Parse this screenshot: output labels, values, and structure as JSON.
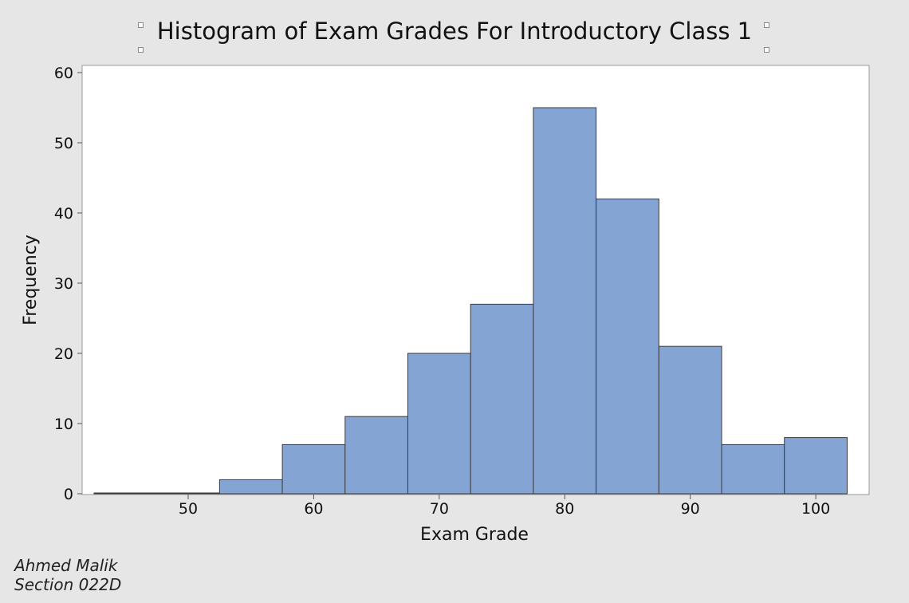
{
  "chart_data": {
    "type": "bar",
    "title": "Histogram of Exam Grades For Introductory Class 1",
    "xlabel": "Exam Grade",
    "ylabel": "Frequency",
    "bin_width": 5,
    "bins": [
      {
        "center": 45,
        "value": 0
      },
      {
        "center": 50,
        "value": 0
      },
      {
        "center": 55,
        "value": 2
      },
      {
        "center": 60,
        "value": 7
      },
      {
        "center": 65,
        "value": 11
      },
      {
        "center": 70,
        "value": 20
      },
      {
        "center": 75,
        "value": 27
      },
      {
        "center": 80,
        "value": 55
      },
      {
        "center": 85,
        "value": 42
      },
      {
        "center": 90,
        "value": 21
      },
      {
        "center": 95,
        "value": 7
      },
      {
        "center": 100,
        "value": 8
      }
    ],
    "x_ticks": [
      "50",
      "60",
      "70",
      "80",
      "90",
      "100"
    ],
    "y_ticks": [
      "0",
      "10",
      "20",
      "30",
      "40",
      "50",
      "60"
    ],
    "xlim": [
      41.55,
      104.25
    ],
    "ylim": [
      0,
      60
    ],
    "grid": false,
    "bar_color": "#84a5d4",
    "bar_edge_color": "#3c3c3c"
  },
  "annotation": {
    "line1": "Ahmed Malik",
    "line2": "Section 022D"
  }
}
